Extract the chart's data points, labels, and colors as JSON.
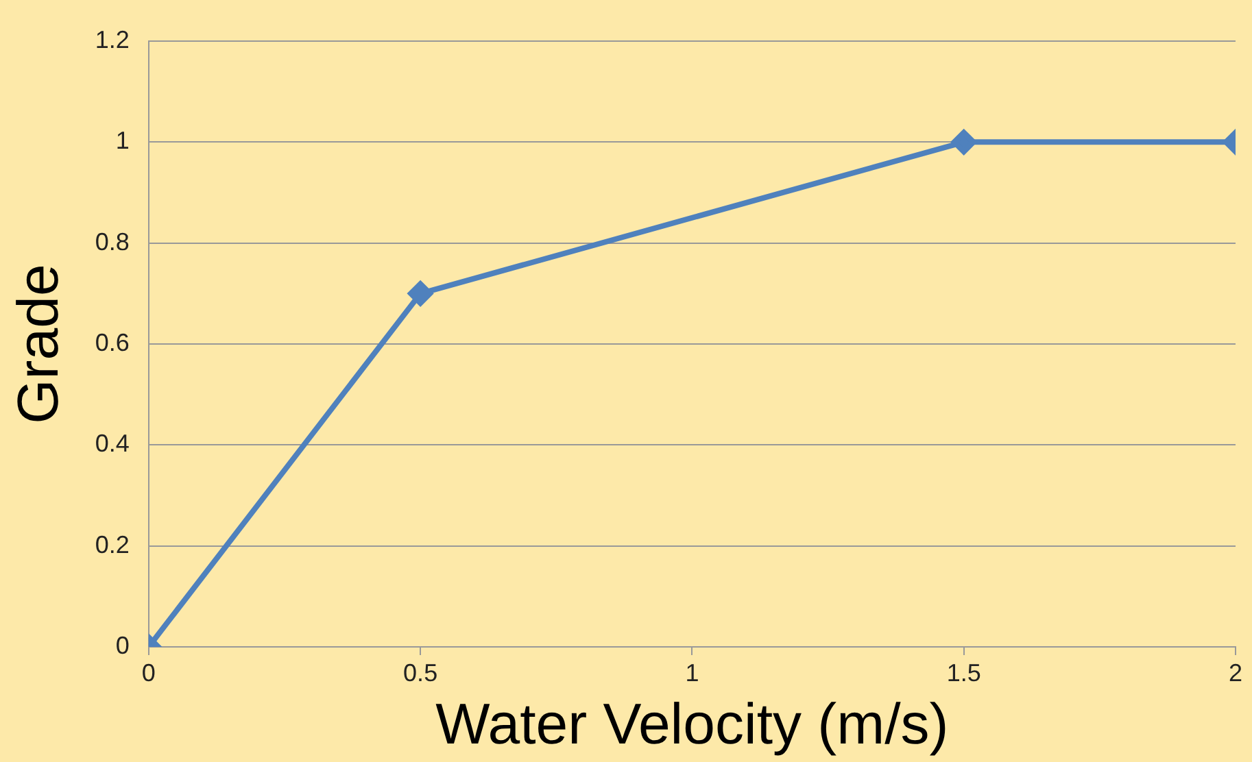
{
  "chart_data": {
    "type": "line",
    "xlabel": "Water Velocity (m/s)",
    "ylabel": "Grade",
    "x": [
      0,
      0.5,
      1.5,
      2
    ],
    "series": [
      {
        "color": "#4f81bd",
        "values": [
          0,
          0.7,
          1,
          1
        ]
      }
    ],
    "xlim": [
      0,
      2
    ],
    "xticks": [
      0,
      0.5,
      1,
      1.5,
      2
    ],
    "ylim": [
      0,
      1.2
    ],
    "yticks": [
      0,
      0.2,
      0.4,
      0.6,
      0.8,
      1,
      1.2
    ],
    "grid": "y",
    "marker": "diamond",
    "line_style": "solid"
  }
}
